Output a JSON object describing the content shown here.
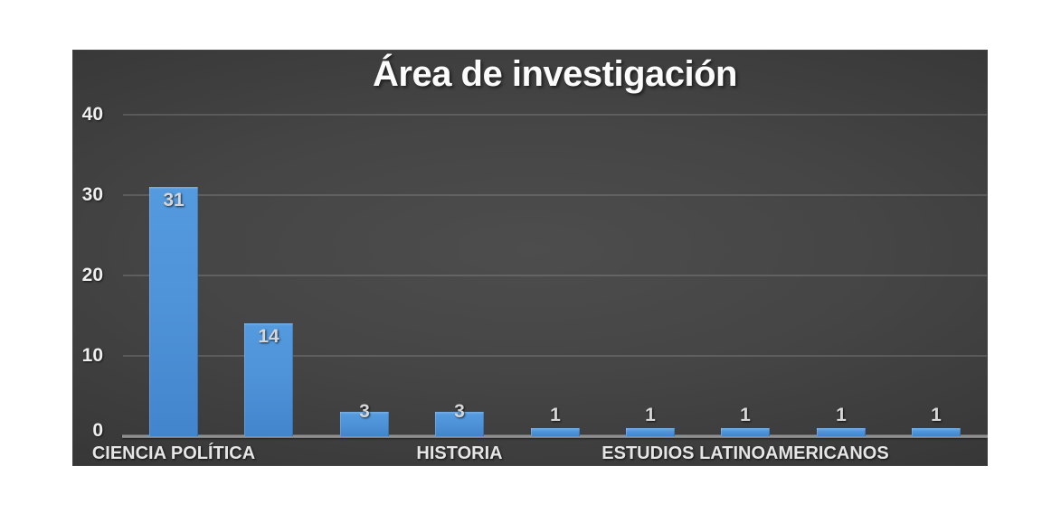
{
  "page": {
    "background": "#ffffff"
  },
  "chart_data": {
    "type": "bar",
    "title": "Área de investigación",
    "values": [
      31,
      14,
      3,
      3,
      1,
      1,
      1,
      1,
      1
    ],
    "value_labels": [
      "31",
      "14",
      "3",
      "3",
      "1",
      "1",
      "1",
      "1",
      "1"
    ],
    "categories": [
      "CIENCIA POLÍTICA",
      "",
      "",
      "HISTORIA",
      "",
      "",
      "ESTUDIOS LATINOAMERICANOS",
      "",
      ""
    ],
    "visible_category_labels": [
      "CIENCIA POLÍTICA",
      "HISTORIA",
      "ESTUDIOS LATINOAMERICANOS"
    ],
    "xlabel": "",
    "ylabel": "",
    "y_ticks": [
      0,
      10,
      20,
      30,
      40
    ],
    "ylim": [
      0,
      40
    ],
    "grid": true,
    "legend": false,
    "colors": {
      "bar_fill": "#4f93d8",
      "bar_highlight": "#79b0e6",
      "panel_bg_center": "#4d4d4d",
      "panel_bg_edge": "#252525",
      "gridline": "rgba(255,255,255,0.14)",
      "axis_line": "#8f8f8f",
      "title_text": "#fbfbfb",
      "tick_text": "#efefef",
      "value_text": "#d6d6d6",
      "category_text": "#e6e6e6"
    }
  }
}
